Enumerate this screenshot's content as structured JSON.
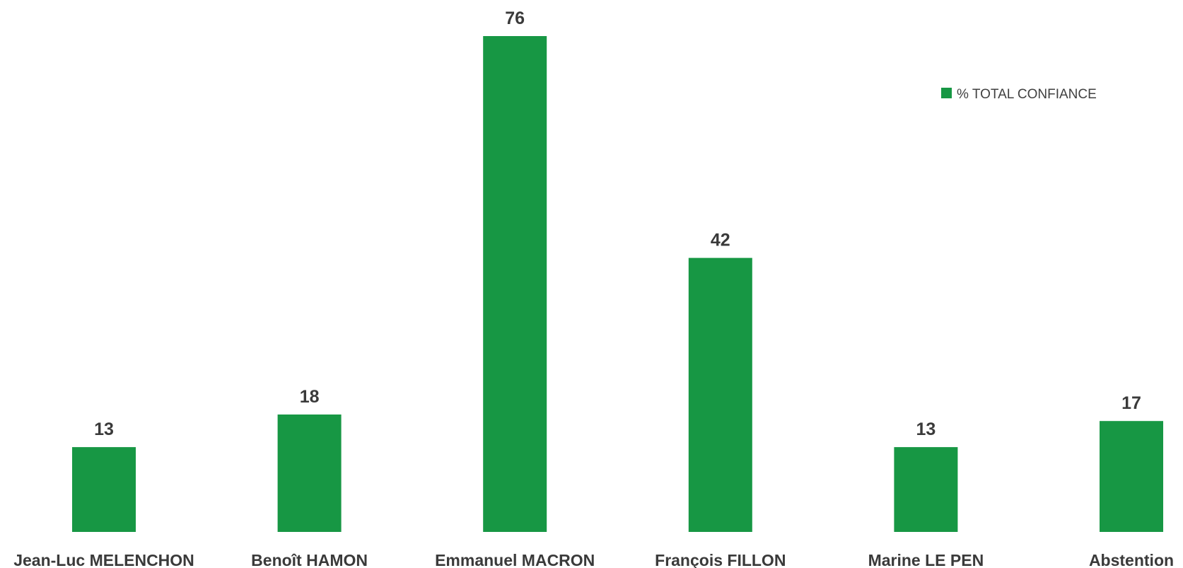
{
  "chart_data": {
    "type": "bar",
    "categories": [
      "Jean-Luc MELENCHON",
      "Benoît HAMON",
      "Emmanuel MACRON",
      "François FILLON",
      "Marine LE PEN",
      "Abstention"
    ],
    "series": [
      {
        "name": "% TOTAL CONFIANCE",
        "values": [
          13,
          18,
          76,
          42,
          13,
          17
        ]
      }
    ],
    "ylim": [
      0,
      76
    ],
    "grid": false,
    "legend_position": "top-right",
    "data_labels": true
  },
  "colors": {
    "bar": "#179744",
    "text": "#3a3a3a"
  }
}
